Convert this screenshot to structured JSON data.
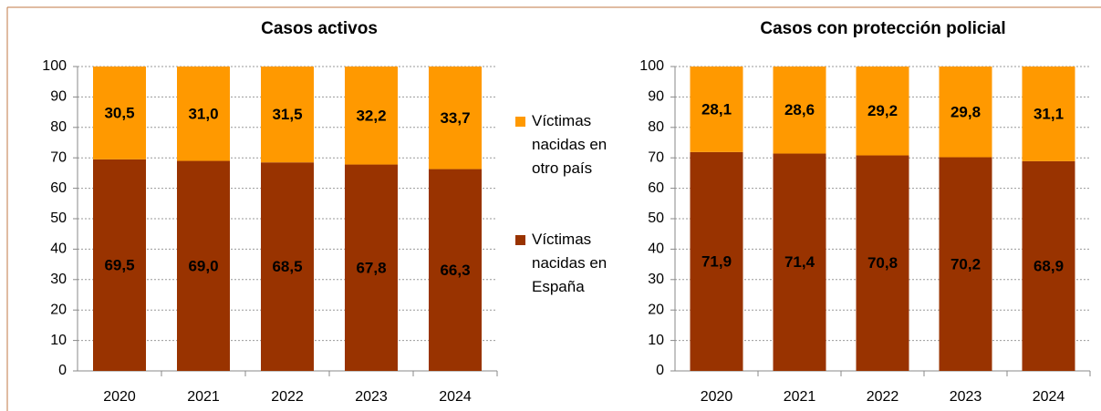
{
  "chart_data": [
    {
      "type": "bar",
      "stacked": true,
      "title": "Casos activos",
      "categories": [
        "2020",
        "2021",
        "2022",
        "2023",
        "2024"
      ],
      "series": [
        {
          "name": "Víctimas nacidas en España",
          "color": "#993300",
          "values": [
            69.5,
            69.0,
            68.5,
            67.8,
            66.3
          ],
          "value_labels": [
            "69,5",
            "69,0",
            "68,5",
            "67,8",
            "66,3"
          ]
        },
        {
          "name": "Víctimas nacidas en otro país",
          "color": "#ff9900",
          "values": [
            30.5,
            31.0,
            31.5,
            32.2,
            33.7
          ],
          "value_labels": [
            "30,5",
            "31,0",
            "31,5",
            "32,2",
            "33,7"
          ]
        }
      ],
      "ylim": [
        0,
        100
      ],
      "yticks": [
        0,
        10,
        20,
        30,
        40,
        50,
        60,
        70,
        80,
        90,
        100
      ],
      "grid": true,
      "legend": "right"
    },
    {
      "type": "bar",
      "stacked": true,
      "title": "Casos con protección policial",
      "categories": [
        "2020",
        "2021",
        "2022",
        "2023",
        "2024"
      ],
      "series": [
        {
          "color": "#993300",
          "values": [
            71.9,
            71.4,
            70.8,
            70.2,
            68.9
          ],
          "value_labels": [
            "71,9",
            "71,4",
            "70,8",
            "70,2",
            "68,9"
          ]
        },
        {
          "color": "#ff9900",
          "values": [
            28.1,
            28.6,
            29.2,
            29.8,
            31.1
          ],
          "value_labels": [
            "28,1",
            "28,6",
            "29,2",
            "29,8",
            "31,1"
          ]
        }
      ],
      "ylim": [
        0,
        100
      ],
      "yticks": [
        0,
        10,
        20,
        30,
        40,
        50,
        60,
        70,
        80,
        90,
        100
      ],
      "grid": true
    }
  ]
}
